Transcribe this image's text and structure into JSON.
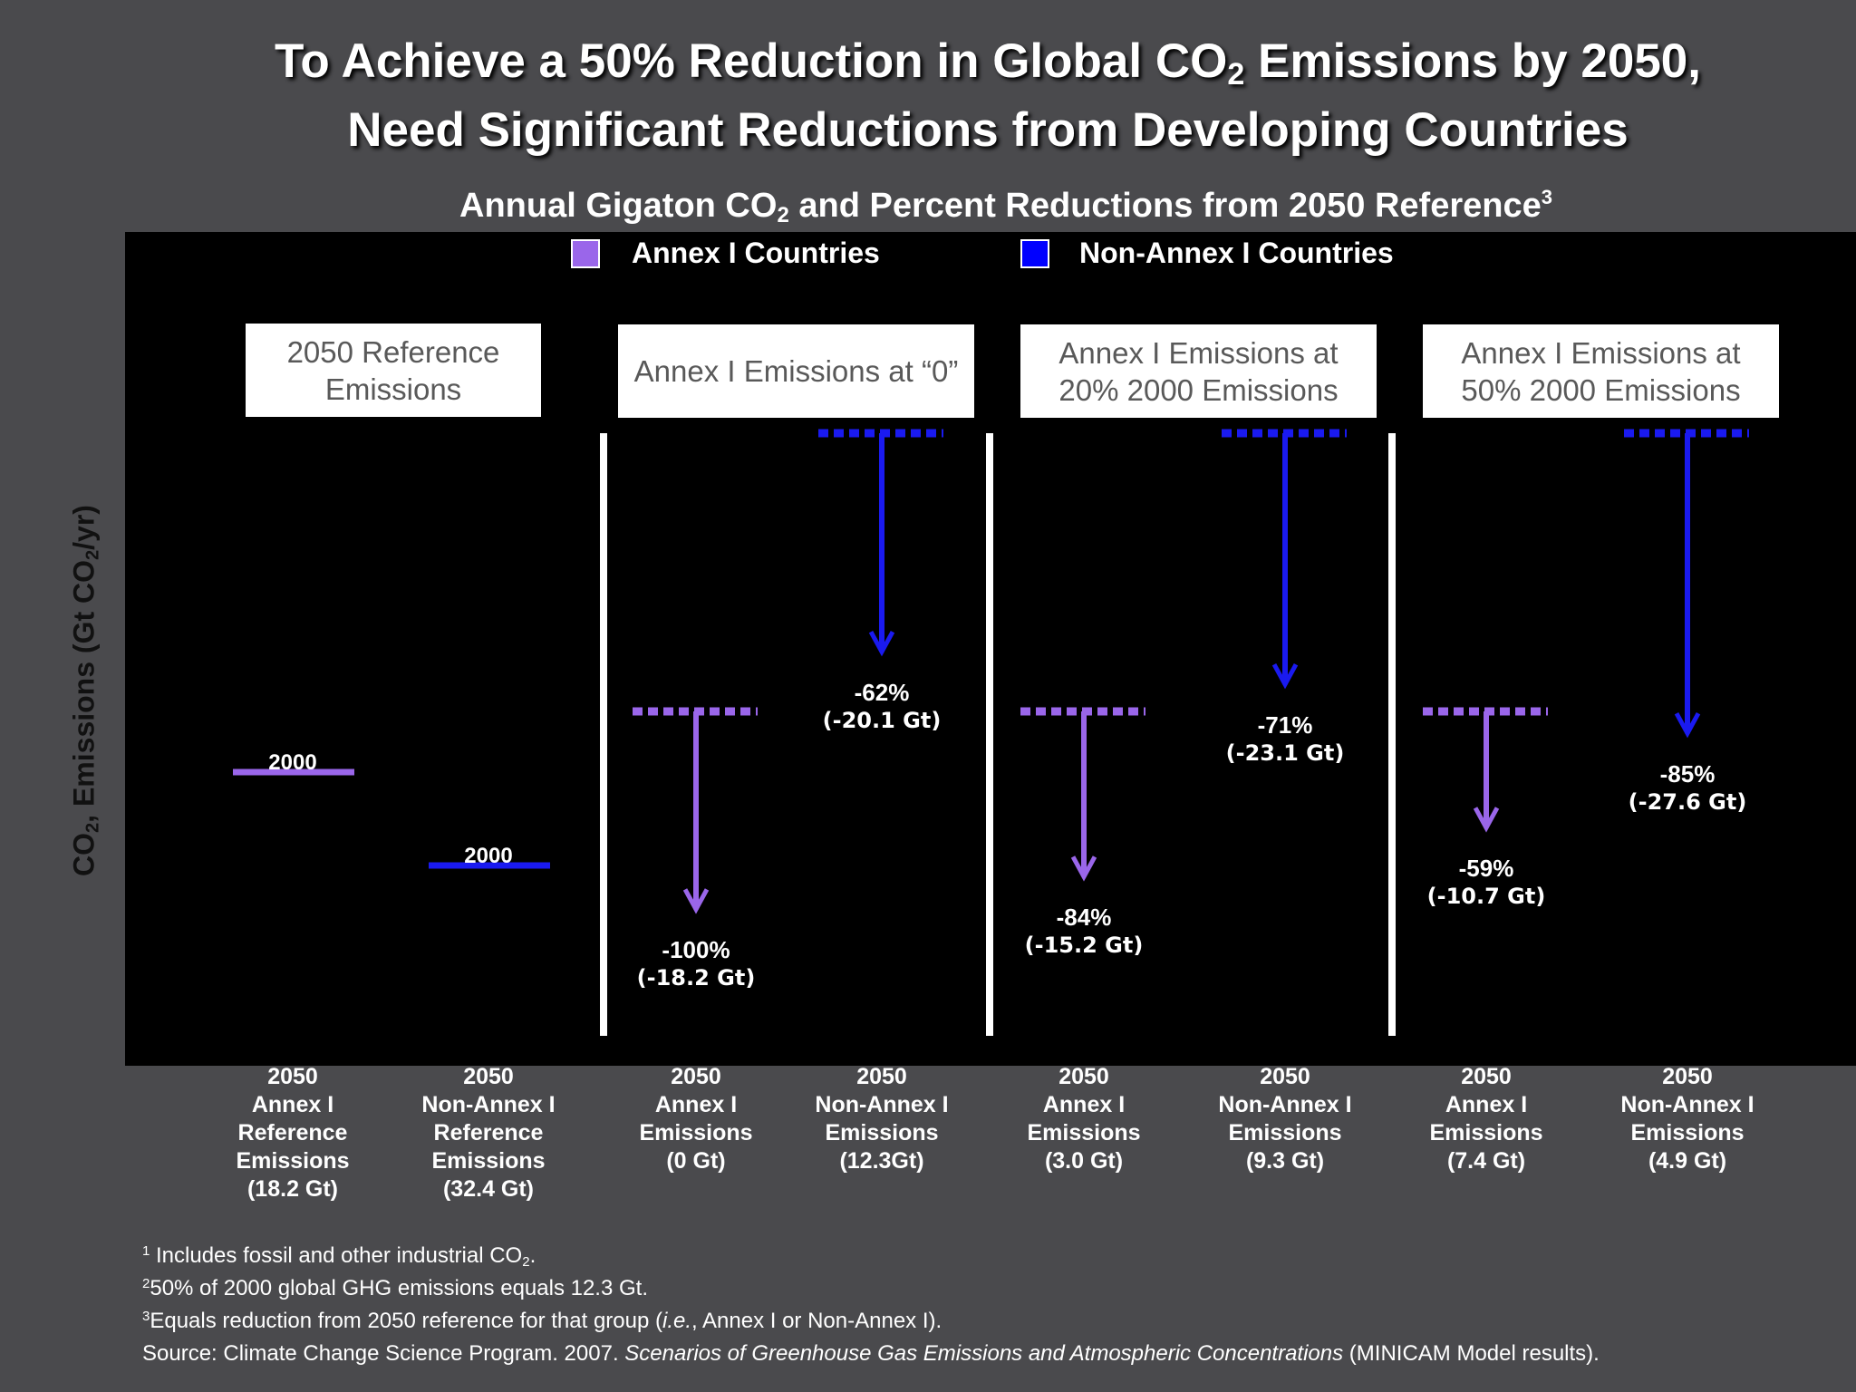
{
  "title": {
    "line1_a": "To Achieve a 50% Reduction in Global CO",
    "line1_sub": "2",
    "line1_b": " Emissions by 2050,",
    "line2": "Need Significant Reductions from Developing Countries"
  },
  "subtitle": {
    "a": "Annual Gigaton CO",
    "sub": "2",
    "b": " and Percent Reductions from 2050 Reference",
    "sup": "3"
  },
  "y_axis": {
    "a": "CO",
    "sub1": "2",
    "b": ", Emissions (Gt CO",
    "sub2": "2",
    "c": "/yr)"
  },
  "colors": {
    "annex": "#9a66ea",
    "nonannex": "#1a1af0",
    "plot_bg": "#000000",
    "page_bg": "#4a4a4d"
  },
  "legend": [
    {
      "label": "Annex I Countries",
      "color": "#9a66ea"
    },
    {
      "label": "Non-Annex I Countries",
      "color": "#0000ff"
    }
  ],
  "panels": [
    {
      "title": "2050 Reference Emissions"
    },
    {
      "title": "Annex I Emissions at “0”"
    },
    {
      "title": "Annex I Emissions at 20% 2000 Emissions"
    },
    {
      "title": "Annex I Emissions at 50% 2000 Emissions"
    }
  ],
  "chart_data": {
    "type": "bar",
    "categories": [
      "2050 Annex I Reference Emissions (18.2 Gt)",
      "2050 Non-Annex I Reference Emissions (32.4 Gt)",
      "2050 Annex I Emissions (0 Gt)",
      "2050 Non-Annex I Emissions (12.3Gt)",
      "2050 Annex I Emissions (3.0 Gt)",
      "2050 Non-Annex I Emissions (9.3 Gt)",
      "2050 Annex I Emissions (7.4 Gt)",
      "2050 Non-Annex I Emissions (4.9 Gt)"
    ],
    "category_lines": [
      [
        "2050",
        "Annex I",
        "Reference",
        "Emissions",
        "(18.2 Gt)"
      ],
      [
        "2050",
        "Non-Annex I",
        "Reference",
        "Emissions",
        "(32.4 Gt)"
      ],
      [
        "2050",
        "Annex I",
        "Emissions",
        "(0 Gt)"
      ],
      [
        "2050",
        "Non-Annex I",
        "Emissions",
        "(12.3Gt)"
      ],
      [
        "2050",
        "Annex I",
        "Emissions",
        "(3.0 Gt)"
      ],
      [
        "2050",
        "Non-Annex I",
        "Emissions",
        "(9.3 Gt)"
      ],
      [
        "2050",
        "Annex I",
        "Emissions",
        "(7.4 Gt)"
      ],
      [
        "2050",
        "Non-Annex I",
        "Emissions",
        "(4.9 Gt)"
      ]
    ],
    "group": [
      "annex",
      "nonannex",
      "annex",
      "nonannex",
      "annex",
      "nonannex",
      "annex",
      "nonannex"
    ],
    "emissions_2050_gt": [
      18.2,
      32.4,
      0,
      12.3,
      3.0,
      9.3,
      7.4,
      4.9
    ],
    "reductions": [
      null,
      null,
      {
        "pct": "-100%",
        "gt": "(-18.2 Gt)",
        "reduction_gt": 18.2
      },
      {
        "pct": "-62%",
        "gt": "(-20.1 Gt)",
        "reduction_gt": 20.1
      },
      {
        "pct": "-84%",
        "gt": "(-15.2 Gt)",
        "reduction_gt": 15.2
      },
      {
        "pct": "-71%",
        "gt": "(-23.1 Gt)",
        "reduction_gt": 23.1
      },
      {
        "pct": "-59%",
        "gt": "(-10.7 Gt)",
        "reduction_gt": 10.7
      },
      {
        "pct": "-85%",
        "gt": "(-27.6 Gt)",
        "reduction_gt": 27.6
      }
    ],
    "reference_markers": [
      {
        "label": "2000",
        "group": "annex"
      },
      {
        "label": "2000",
        "group": "nonannex"
      }
    ],
    "ylabel": "CO2, Emissions (Gt CO2/yr)"
  },
  "footnotes": {
    "f1_sup": "1",
    "f1_a": " Includes fossil and other industrial CO",
    "f1_sub": "2",
    "f1_b": ".",
    "f2_sup": "2",
    "f2": "50% of 2000 global GHG emissions equals 12.3 Gt.",
    "f3_sup": "3",
    "f3_a": "Equals reduction from 2050 reference for that group (",
    "f3_ie": "i.e.",
    "f3_b": ", Annex I or Non-Annex I).",
    "source_a": "Source: Climate Change Science Program. 2007. ",
    "source_i": "Scenarios of Greenhouse Gas Emissions and Atmospheric Concentrations",
    "source_b": " (MINICAM Model results)."
  }
}
